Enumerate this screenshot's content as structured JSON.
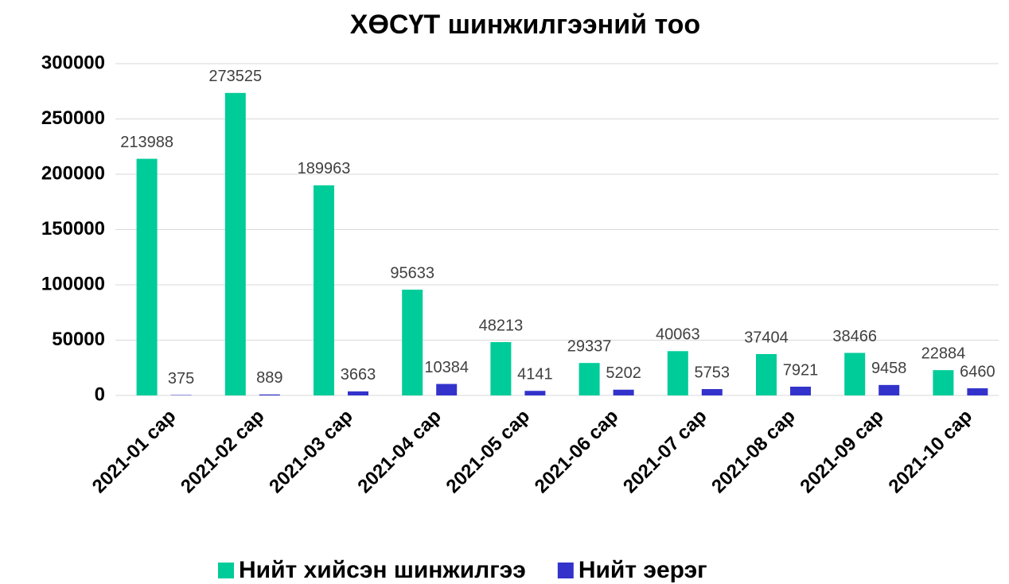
{
  "chart_data": {
    "type": "bar",
    "title": "ХӨСҮТ шинжилгээний тоо",
    "categories": [
      "2021-01 сар",
      "2021-02 сар",
      "2021-03 сар",
      "2021-04 сар",
      "2021-05 сар",
      "2021-06 сар",
      "2021-07 сар",
      "2021-08 сар",
      "2021-09 сар",
      "2021-10 сар"
    ],
    "series": [
      {
        "name": "Нийт хийсэн шинжилгээ",
        "color": "#00cc99",
        "values": [
          213988,
          273525,
          189963,
          95633,
          48213,
          29337,
          40063,
          37404,
          38466,
          22884
        ]
      },
      {
        "name": "Нийт эерэг",
        "color": "#3333cc",
        "values": [
          375,
          889,
          3663,
          10384,
          4141,
          5202,
          5753,
          7921,
          9458,
          6460
        ]
      }
    ],
    "ylim": [
      0,
      300000
    ],
    "yticks": [
      0,
      50000,
      100000,
      150000,
      200000,
      250000,
      300000
    ],
    "grid": true,
    "legend": "bottom"
  }
}
